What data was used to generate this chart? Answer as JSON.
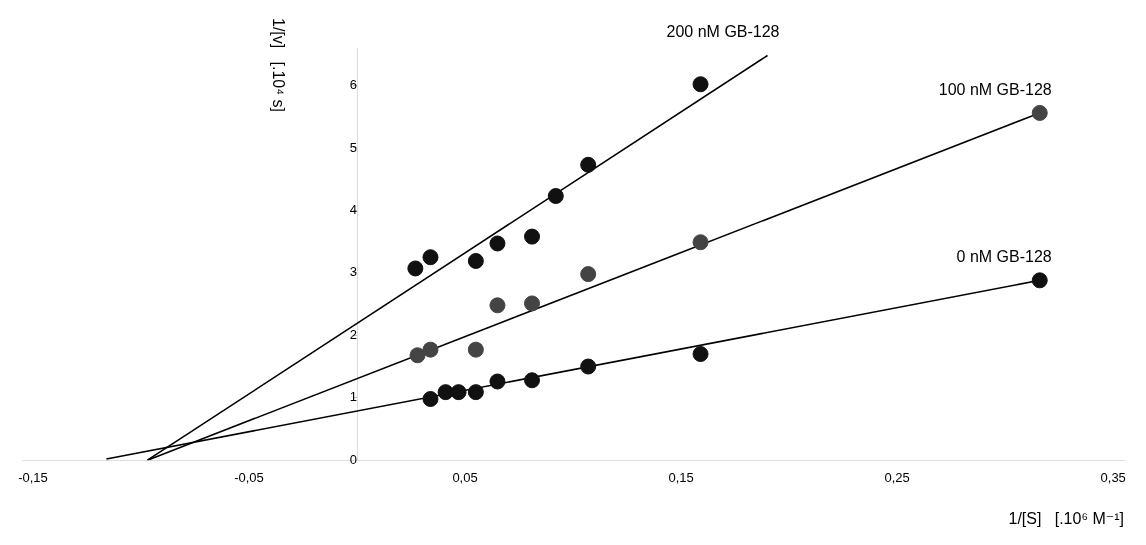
{
  "chart_data": {
    "type": "scatter",
    "xlabel": "1/[S]   [.10⁶ M⁻¹]",
    "ylabel": "1/[v]   [.10⁴ s]",
    "xlim": [
      -0.155,
      0.355
    ],
    "ylim": [
      0,
      6.6
    ],
    "xticks": [
      {
        "value": -0.15,
        "label": "-0,15"
      },
      {
        "value": -0.05,
        "label": "-0,05"
      },
      {
        "value": 0.05,
        "label": "0,05"
      },
      {
        "value": 0.15,
        "label": "0,15"
      },
      {
        "value": 0.25,
        "label": "0,25"
      },
      {
        "value": 0.35,
        "label": "0,35"
      }
    ],
    "yticks": [
      0,
      1,
      2,
      3,
      4,
      5,
      6
    ],
    "grid": false,
    "legend": false,
    "marker": "circle",
    "series": [
      {
        "color": "#111111",
        "x": [
          0.034,
          0.041,
          0.047,
          0.055,
          0.065,
          0.081,
          0.107,
          0.159,
          0.316
        ],
        "values": [
          0.98,
          1.09,
          1.09,
          1.09,
          1.26,
          1.28,
          1.5,
          1.7,
          2.88
        ]
      },
      {
        "color": "#444444",
        "x": [
          0.028,
          0.034,
          0.055,
          0.065,
          0.081,
          0.107,
          0.159,
          0.316
        ],
        "values": [
          1.68,
          1.77,
          1.77,
          2.48,
          2.51,
          2.98,
          3.49,
          5.56
        ]
      },
      {
        "color": "#111111",
        "x": [
          0.027,
          0.034,
          0.055,
          0.065,
          0.081,
          0.092,
          0.107,
          0.159
        ],
        "values": [
          3.07,
          3.25,
          3.19,
          3.47,
          3.58,
          4.23,
          4.73,
          6.02
        ]
      },
      {
        "type": "line",
        "marker": "none",
        "name": "0 nM GB-128",
        "color": "#000000",
        "x": [
          -0.116,
          0.316
        ],
        "values": [
          0.02,
          2.88
        ]
      },
      {
        "type": "line",
        "marker": "none",
        "name": "100 nM GB-128",
        "color": "#000000",
        "x": [
          -0.097,
          0.316
        ],
        "values": [
          0,
          5.56
        ]
      },
      {
        "type": "line",
        "marker": "none",
        "name": "200 nM GB-128",
        "color": "#000000",
        "x": [
          -0.097,
          0.19
        ],
        "values": [
          0,
          6.48
        ]
      }
    ]
  }
}
